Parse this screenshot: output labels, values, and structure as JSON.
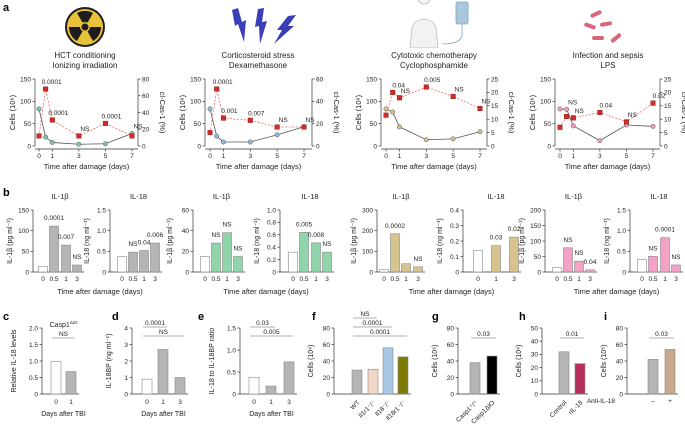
{
  "panel_letters": [
    "a",
    "b",
    "c",
    "d",
    "e",
    "f",
    "g",
    "h",
    "i"
  ],
  "conditions": [
    {
      "line1": "HCT conditioning",
      "line2": "Ionizing irradiation",
      "icon": "radiation-icon",
      "color": "#e8c33a"
    },
    {
      "line1": "Corticosteroid stress",
      "line2": "Dexamethasone",
      "icon": "lightning-icon",
      "color": "#3a3fb8"
    },
    {
      "line1": "Cytotoxic chemotherapy",
      "line2": "Cyclophosphamide",
      "icon": "human-iv-drip-icon",
      "color": "#9cc0d8"
    },
    {
      "line1": "Infection and sepsis",
      "line2": "LPS",
      "icon": "bacteria-icon",
      "color": "#d9667a"
    }
  ],
  "chart_data": [
    {
      "id": "a1",
      "type": "line",
      "xlabel": "Time after damage (days)",
      "ylabel": "Cells (10⁶)",
      "y2label": "cl-Cas-1 (%)",
      "x": [
        0,
        0.5,
        1,
        3,
        5,
        7
      ],
      "xticks": [
        "0",
        "1",
        "3",
        "5",
        "7"
      ],
      "ylim": [
        0,
        150
      ],
      "yticks": [
        0,
        50,
        100,
        150
      ],
      "y2lim": [
        0,
        80
      ],
      "y2ticks": [
        0,
        20,
        40,
        60,
        80
      ],
      "series": [
        {
          "axis": "left",
          "values": [
            83,
            20,
            8,
            4,
            5,
            28
          ],
          "color": "#7fc7a0"
        },
        {
          "axis": "right",
          "values": [
            12,
            68,
            31,
            12,
            27,
            12
          ],
          "color": "#d42a2a"
        }
      ],
      "annotations": [
        "",
        "0.0001",
        "0.0001",
        "NS",
        "0.0001",
        "NS"
      ]
    },
    {
      "id": "a2",
      "type": "line",
      "xlabel": "Time after damage (days)",
      "ylabel": "Cells (10⁶)",
      "y2label": "cl-Cas-1 (%)",
      "x": [
        0,
        0.5,
        1,
        3,
        5,
        7
      ],
      "xticks": [
        "0",
        "1",
        "3",
        "5",
        "7"
      ],
      "ylim": [
        0,
        150
      ],
      "yticks": [
        0,
        50,
        100,
        150
      ],
      "y2lim": [
        0,
        60
      ],
      "y2ticks": [
        0,
        20,
        40,
        60
      ],
      "series": [
        {
          "axis": "left",
          "values": [
            83,
            22,
            9,
            9,
            25,
            43
          ],
          "color": "#8fb8dc"
        },
        {
          "axis": "right",
          "values": [
            12,
            51,
            25,
            23,
            17,
            17
          ],
          "color": "#d42a2a"
        }
      ],
      "annotations": [
        "",
        "0.0001",
        "0.001",
        "0.007",
        "NS",
        "NS"
      ]
    },
    {
      "id": "a3",
      "type": "line",
      "xlabel": "Time after damage (days)",
      "ylabel": "Cells (10⁶)",
      "y2label": "cl-Cas-1 (%)",
      "x": [
        0,
        0.5,
        1,
        3,
        5,
        7
      ],
      "xticks": [
        "0",
        "1",
        "3",
        "5",
        "7"
      ],
      "ylim": [
        0,
        150
      ],
      "yticks": [
        0,
        50,
        100,
        150
      ],
      "y2lim": [
        0,
        25
      ],
      "y2ticks": [
        0,
        5,
        10,
        15,
        20,
        25
      ],
      "series": [
        {
          "axis": "left",
          "values": [
            83,
            76,
            43,
            14,
            16,
            32
          ],
          "color": "#d2c08a"
        },
        {
          "axis": "right",
          "values": [
            11.5,
            20,
            18,
            22,
            18.5,
            14
          ],
          "color": "#d42a2a"
        }
      ],
      "annotations": [
        "",
        "0.04",
        "NS",
        "0.005",
        "NS",
        "NS"
      ]
    },
    {
      "id": "a4",
      "type": "line",
      "xlabel": "Time after damage (days)",
      "ylabel": "Cells (10⁶)",
      "y2label": "cl-Cas-1 (%)",
      "x": [
        0,
        0.5,
        1,
        3,
        5,
        7
      ],
      "xticks": [
        "0",
        "1",
        "3",
        "5",
        "7"
      ],
      "ylim": [
        0,
        150
      ],
      "yticks": [
        0,
        50,
        100,
        150
      ],
      "y2lim": [
        0,
        25
      ],
      "y2ticks": [
        0,
        5,
        10,
        15,
        20,
        25
      ],
      "series": [
        {
          "axis": "left",
          "values": [
            83,
            82,
            45,
            12,
            47,
            44
          ],
          "color": "#ef9cc0"
        },
        {
          "axis": "right",
          "values": [
            7,
            11,
            10.5,
            12.5,
            9,
            16
          ],
          "color": "#d42a2a"
        }
      ],
      "annotations": [
        "",
        "NS",
        "NS",
        "0.04",
        "NS",
        "0.02"
      ]
    },
    {
      "id": "b1",
      "type": "bar",
      "title": "IL-1β",
      "ylabel": "IL-1β (pg ml⁻¹)",
      "categories": [
        "0",
        "0.5",
        "1",
        "3"
      ],
      "values": [
        13,
        111,
        65,
        17
      ],
      "ylim": [
        0,
        150
      ],
      "yticks": [
        0,
        50,
        100,
        150
      ],
      "color": "#b5b5b5",
      "annotations": [
        "",
        "0.0001",
        "0.007",
        "NS"
      ]
    },
    {
      "id": "b2",
      "type": "bar",
      "title": "IL-18",
      "ylabel": "IL-18 (ng ml⁻¹)",
      "categories": [
        "0",
        "0.5",
        "1",
        "3"
      ],
      "values": [
        0.37,
        0.48,
        0.52,
        0.7
      ],
      "ylim": [
        0,
        1.5
      ],
      "yticks": [
        0,
        0.5,
        1.0,
        1.5
      ],
      "yticklabels": [
        "0",
        "0.5",
        "1.0",
        "1.5"
      ],
      "color": "#b5b5b5",
      "annotations": [
        "",
        "NS",
        "0.04",
        "0.006"
      ]
    },
    {
      "id": "b3",
      "type": "bar",
      "title": "IL-1β",
      "ylabel": "IL-1β (pg ml⁻¹)",
      "categories": [
        "0",
        "0.5",
        "1",
        "3"
      ],
      "values": [
        15,
        28,
        38,
        15
      ],
      "ylim": [
        0,
        60
      ],
      "yticks": [
        0,
        20,
        40,
        60
      ],
      "color": "#8fd4aa",
      "annotations": [
        "",
        "NS",
        "NS",
        "NS"
      ]
    },
    {
      "id": "b4",
      "type": "bar",
      "title": "IL-18",
      "ylabel": "IL-18 (ng ml⁻¹)",
      "categories": [
        "0",
        "0.5",
        "1",
        "3"
      ],
      "values": [
        0.32,
        0.64,
        0.47,
        0.32
      ],
      "ylim": [
        0,
        1.0
      ],
      "yticks": [
        0,
        0.2,
        0.4,
        0.6,
        0.8,
        1.0
      ],
      "yticklabels": [
        "0",
        "0.2",
        "0.4",
        "0.6",
        "0.8",
        "1.0"
      ],
      "color": "#8fd4aa",
      "annotations": [
        "",
        "0.005",
        "0.008",
        "NS"
      ]
    },
    {
      "id": "b5",
      "type": "bar",
      "title": "IL-1β",
      "ylabel": "IL-1β (pg ml⁻¹)",
      "categories": [
        "0",
        "0.5",
        "1",
        "3"
      ],
      "values": [
        12,
        185,
        40,
        25
      ],
      "ylim": [
        0,
        300
      ],
      "yticks": [
        0,
        100,
        200,
        300
      ],
      "color": "#d6c38e",
      "annotations": [
        "",
        "0.0002",
        "",
        "NS"
      ]
    },
    {
      "id": "b6",
      "type": "bar",
      "title": "IL-18",
      "ylabel": "IL-18 (ng ml⁻¹)",
      "categories": [
        "0",
        "1",
        "3"
      ],
      "values": [
        0.14,
        0.17,
        0.225
      ],
      "ylim": [
        0,
        0.4
      ],
      "yticks": [
        0,
        0.1,
        0.2,
        0.3,
        0.4
      ],
      "yticklabels": [
        "0",
        "0.1",
        "0.2",
        "0.3",
        "0.4"
      ],
      "color": "#d6c38e",
      "annotations": [
        "",
        "0.03",
        "0.02"
      ]
    },
    {
      "id": "b7",
      "type": "bar",
      "title": "IL-1β",
      "ylabel": "IL-1β (pg ml⁻¹)",
      "categories": [
        "0",
        "0.5",
        "1",
        "3"
      ],
      "values": [
        15,
        78,
        35,
        7
      ],
      "ylim": [
        0,
        200
      ],
      "yticks": [
        0,
        50,
        100,
        150,
        200
      ],
      "color": "#f3a2c6",
      "annotations": [
        "",
        "NS",
        "NS",
        "0.04"
      ]
    },
    {
      "id": "b8",
      "type": "bar",
      "title": "IL-18",
      "ylabel": "IL-18 (ng ml⁻¹)",
      "categories": [
        "0",
        "0.5",
        "1",
        "3"
      ],
      "values": [
        0.3,
        0.38,
        0.83,
        0.17
      ],
      "ylim": [
        0,
        1.5
      ],
      "yticks": [
        0,
        0.5,
        1.0,
        1.5
      ],
      "yticklabels": [
        "0",
        "0.5",
        "1.0",
        "1.5"
      ],
      "color": "#f3a2c6",
      "annotations": [
        "",
        "NS",
        "0.0001",
        "NS"
      ]
    },
    {
      "id": "c",
      "type": "bar",
      "title": "Casp1",
      "title_sup": "ΔIO",
      "ylabel": "Relative IL-18 levels",
      "xlabel": "Days after TBI",
      "categories": [
        "0",
        "1"
      ],
      "values": [
        0.98,
        0.68
      ],
      "ylim": [
        0,
        2.0
      ],
      "yticks": [
        0,
        0.5,
        1.0,
        1.5,
        2.0
      ],
      "yticklabels": [
        "0",
        "0.5",
        "1.0",
        "1.5",
        "2.0"
      ],
      "colors": [
        "#ffffff",
        "#b5b5b5"
      ],
      "brackets": [
        {
          "from": 0,
          "to": 1,
          "label": "NS"
        }
      ]
    },
    {
      "id": "d",
      "type": "bar",
      "ylabel": "IL-18BP (ng ml⁻¹)",
      "xlabel": "Days after TBI",
      "categories": [
        "0",
        "1",
        "3"
      ],
      "values": [
        0.9,
        2.7,
        1.0
      ],
      "ylim": [
        0,
        4
      ],
      "yticks": [
        0,
        1,
        2,
        3,
        4
      ],
      "colors": [
        "#ffffff",
        "#b5b5b5",
        "#b5b5b5"
      ],
      "brackets": [
        {
          "from": 0,
          "to": 1,
          "label": "0.0001"
        },
        {
          "from": 0,
          "to": 2,
          "label": "NS"
        }
      ]
    },
    {
      "id": "e",
      "type": "bar",
      "ylabel": "IL-18 to IL-18BP ratio",
      "xlabel": "Days after TBI",
      "categories": [
        "0",
        "1",
        "3"
      ],
      "values": [
        0.38,
        0.18,
        0.73
      ],
      "ylim": [
        0,
        1.5
      ],
      "yticks": [
        0,
        0.5,
        1.0,
        1.5
      ],
      "yticklabels": [
        "0",
        "0.5",
        "1.0",
        "1.5"
      ],
      "colors": [
        "#ffffff",
        "#b5b5b5",
        "#b5b5b5"
      ],
      "brackets": [
        {
          "from": 0,
          "to": 1,
          "label": "0.03"
        },
        {
          "from": 0,
          "to": 2,
          "label": "0.005"
        }
      ]
    },
    {
      "id": "f",
      "type": "bar",
      "ylabel": "Cells (10⁶)",
      "categories": [
        "WT",
        "Il1r1⁻/⁻",
        "Il18⁻/⁻",
        "Il18r1⁻/⁻"
      ],
      "values": [
        29,
        30,
        56,
        45
      ],
      "ylim": [
        0,
        80
      ],
      "yticks": [
        0,
        20,
        40,
        60,
        80
      ],
      "colors": [
        "#b5b5b5",
        "#f2d6c6",
        "#a8c8e6",
        "#7d7a05"
      ],
      "rotated_labels": true,
      "brackets": [
        {
          "from": 0,
          "to": 1,
          "label": "NS"
        },
        {
          "from": 0,
          "to": 2,
          "label": "0.0001"
        },
        {
          "from": 0,
          "to": 3,
          "label": "0.0001"
        }
      ]
    },
    {
      "id": "g",
      "type": "bar",
      "ylabel": "Cells (10⁶)",
      "categories": [
        "Casp1⁺/⁺",
        "Casp1ΔIO"
      ],
      "values": [
        38,
        46
      ],
      "ylim": [
        0,
        80
      ],
      "yticks": [
        0,
        20,
        40,
        60,
        80
      ],
      "colors": [
        "#b5b5b5",
        "#000000"
      ],
      "rotated_labels": true,
      "brackets": [
        {
          "from": 0,
          "to": 1,
          "label": "0.03"
        }
      ]
    },
    {
      "id": "h",
      "type": "bar",
      "ylabel": "Cells (10⁶)",
      "categories": [
        "Control",
        "rIL-18"
      ],
      "values": [
        32,
        23
      ],
      "ylim": [
        0,
        50
      ],
      "yticks": [
        0,
        10,
        20,
        30,
        40,
        50
      ],
      "colors": [
        "#b5b5b5",
        "#b5305c"
      ],
      "rotated_labels": true,
      "brackets": [
        {
          "from": 0,
          "to": 1,
          "label": "0.01"
        }
      ]
    },
    {
      "id": "i",
      "type": "bar",
      "ylabel": "Cells (10⁶)",
      "row_label": "Anti-IL-18",
      "categories": [
        "–",
        "+"
      ],
      "values": [
        42,
        54
      ],
      "ylim": [
        0,
        80
      ],
      "yticks": [
        0,
        20,
        40,
        60,
        80
      ],
      "colors": [
        "#b5b5b5",
        "#c9a98c"
      ],
      "brackets": [
        {
          "from": 0,
          "to": 1,
          "label": "0.03"
        }
      ]
    }
  ],
  "shared_labels": {
    "b_xlabel": "Time after damage (days)"
  }
}
